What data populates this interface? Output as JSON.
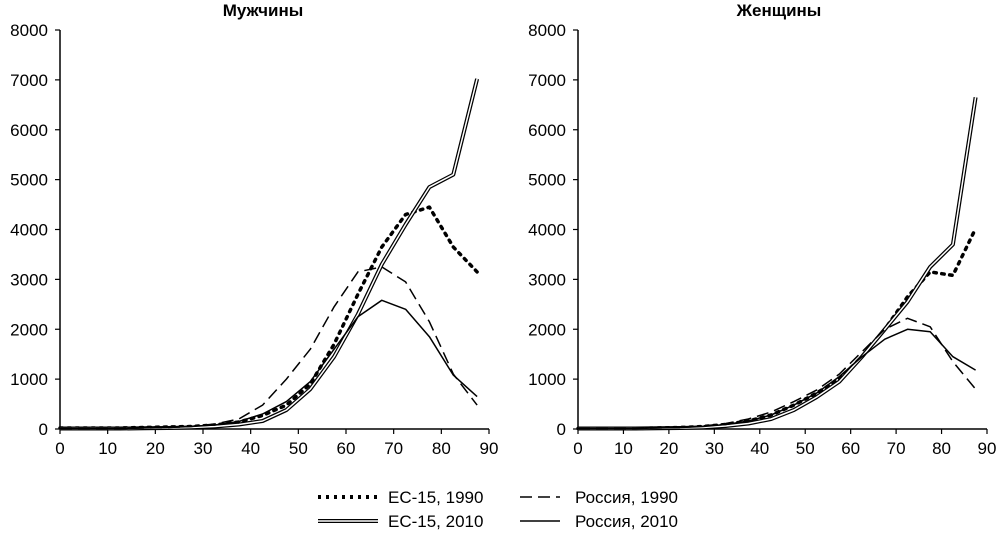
{
  "chart_data": [
    {
      "type": "line",
      "title": "Мужчины",
      "xlabel": "",
      "ylabel": "",
      "xlim": [
        0,
        90
      ],
      "ylim": [
        0,
        8000
      ],
      "xticks": [
        0,
        10,
        20,
        30,
        40,
        50,
        60,
        70,
        80,
        90
      ],
      "yticks": [
        0,
        1000,
        2000,
        3000,
        4000,
        5000,
        6000,
        7000,
        8000
      ],
      "x": [
        0,
        2.5,
        7.5,
        12.5,
        17.5,
        22.5,
        27.5,
        32.5,
        37.5,
        42.5,
        47.5,
        52.5,
        57.5,
        62.5,
        67.5,
        72.5,
        77.5,
        82.5,
        87.5
      ],
      "series": [
        {
          "name": "ЕС-15, 1990",
          "style": "dotted",
          "values": [
            20,
            20,
            20,
            20,
            30,
            40,
            50,
            80,
            140,
            270,
            480,
            900,
            1700,
            2700,
            3650,
            4300,
            4450,
            3650,
            3150
          ]
        },
        {
          "name": "ЕС-15, 2010",
          "style": "double",
          "values": [
            10,
            10,
            10,
            10,
            15,
            20,
            30,
            50,
            90,
            160,
            380,
            800,
            1450,
            2300,
            3300,
            4100,
            4850,
            5100,
            7020
          ]
        },
        {
          "name": "Россия, 1990",
          "style": "dashed",
          "values": [
            10,
            10,
            10,
            10,
            20,
            30,
            50,
            100,
            200,
            480,
            1000,
            1600,
            2450,
            3150,
            3250,
            2950,
            2150,
            1100,
            480
          ]
        },
        {
          "name": "Россия, 2010",
          "style": "solid",
          "values": [
            10,
            10,
            10,
            10,
            20,
            30,
            50,
            80,
            150,
            300,
            550,
            950,
            1600,
            2250,
            2580,
            2400,
            1850,
            1080,
            650
          ]
        }
      ]
    },
    {
      "type": "line",
      "title": "Женщины",
      "xlabel": "",
      "ylabel": "",
      "xlim": [
        0,
        90
      ],
      "ylim": [
        0,
        8000
      ],
      "xticks": [
        0,
        10,
        20,
        30,
        40,
        50,
        60,
        70,
        80,
        90
      ],
      "yticks": [
        0,
        1000,
        2000,
        3000,
        4000,
        5000,
        6000,
        7000,
        8000
      ],
      "x": [
        0,
        2.5,
        7.5,
        12.5,
        17.5,
        22.5,
        27.5,
        32.5,
        37.5,
        42.5,
        47.5,
        52.5,
        57.5,
        62.5,
        67.5,
        72.5,
        77.5,
        82.5,
        87.5
      ],
      "series": [
        {
          "name": "ЕС-15, 1990",
          "style": "dotted",
          "values": [
            10,
            10,
            10,
            10,
            20,
            30,
            50,
            90,
            160,
            280,
            480,
            720,
            1000,
            1450,
            2000,
            2650,
            3150,
            3080,
            4020
          ]
        },
        {
          "name": "ЕС-15, 2010",
          "style": "double",
          "values": [
            10,
            10,
            10,
            10,
            15,
            20,
            30,
            60,
            110,
            200,
            380,
            640,
            950,
            1450,
            2000,
            2550,
            3250,
            3700,
            6650
          ]
        },
        {
          "name": "Россия, 1990",
          "style": "dashed",
          "values": [
            10,
            10,
            10,
            10,
            20,
            30,
            60,
            110,
            200,
            340,
            550,
            780,
            1100,
            1550,
            2000,
            2220,
            2050,
            1350,
            800
          ]
        },
        {
          "name": "Россия, 2010",
          "style": "solid",
          "values": [
            10,
            10,
            10,
            10,
            20,
            30,
            50,
            90,
            160,
            280,
            480,
            720,
            1050,
            1450,
            1800,
            2000,
            1950,
            1450,
            1180
          ]
        }
      ]
    }
  ],
  "legend": {
    "placement": "bottom-center",
    "items": [
      {
        "label": "ЕС-15, 1990",
        "style": "dotted"
      },
      {
        "label": "Россия, 1990",
        "style": "dashed"
      },
      {
        "label": "ЕС-15, 2010",
        "style": "double"
      },
      {
        "label": "Россия, 2010",
        "style": "solid"
      }
    ]
  },
  "colors": {
    "line": "#000000",
    "background": "#ffffff"
  }
}
